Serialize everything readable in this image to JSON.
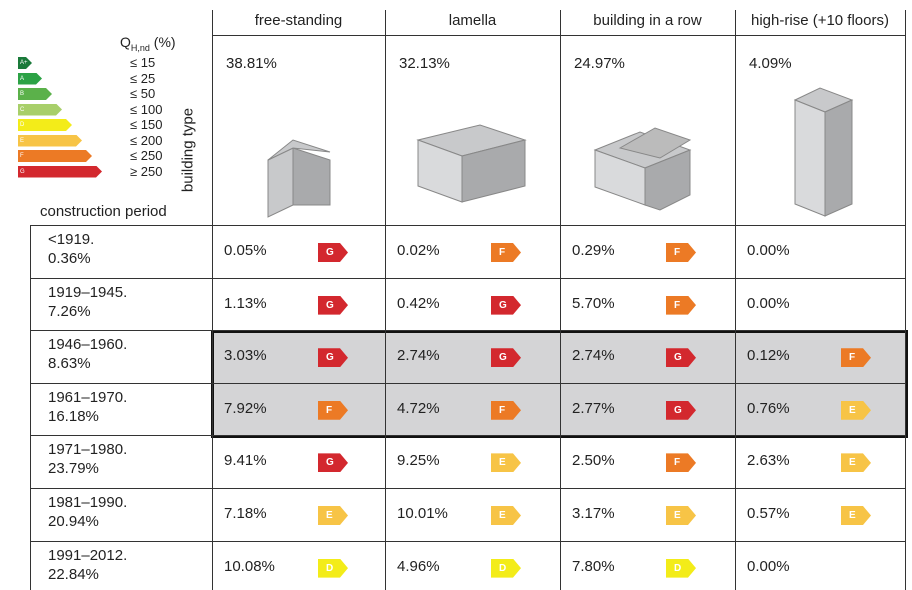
{
  "legend": {
    "quantity": "Q",
    "subscript": "H,nd",
    "unit": "(%)",
    "items": [
      {
        "letter": "A+",
        "threshold": "≤ 15",
        "color": "#1a7a3a"
      },
      {
        "letter": "A",
        "threshold": "≤ 25",
        "color": "#2ca245"
      },
      {
        "letter": "B",
        "threshold": "≤ 50",
        "color": "#5bb14a"
      },
      {
        "letter": "C",
        "threshold": "≤ 100",
        "color": "#a8cf6a"
      },
      {
        "letter": "D",
        "threshold": "≤ 150",
        "color": "#f3ec19"
      },
      {
        "letter": "E",
        "threshold": "≤ 200",
        "color": "#f7c446"
      },
      {
        "letter": "F",
        "threshold": "≤ 250",
        "color": "#ec7a25"
      },
      {
        "letter": "G",
        "threshold": "≥ 250",
        "color": "#d3282e"
      }
    ]
  },
  "axis_labels": {
    "columns": "building type",
    "rows": "construction period"
  },
  "columns": [
    {
      "name": "free-standing",
      "share": "38.81%"
    },
    {
      "name": "lamella",
      "share": "32.13%"
    },
    {
      "name": "building in a row",
      "share": "24.97%"
    },
    {
      "name": "high-rise (+10 floors)",
      "share": "4.09%"
    }
  ],
  "rows": [
    {
      "period": "<1919.",
      "share": "0.36%",
      "cells": [
        {
          "value": "0.05%",
          "class": "G"
        },
        {
          "value": "0.02%",
          "class": "F"
        },
        {
          "value": "0.29%",
          "class": "F"
        },
        {
          "value": "0.00%",
          "class": null
        }
      ]
    },
    {
      "period": "1919–1945.",
      "share": "7.26%",
      "cells": [
        {
          "value": "1.13%",
          "class": "G"
        },
        {
          "value": "0.42%",
          "class": "G"
        },
        {
          "value": "5.70%",
          "class": "F"
        },
        {
          "value": "0.00%",
          "class": null
        }
      ]
    },
    {
      "period": "1946–1960.",
      "share": "8.63%",
      "cells": [
        {
          "value": "3.03%",
          "class": "G"
        },
        {
          "value": "2.74%",
          "class": "G"
        },
        {
          "value": "2.74%",
          "class": "G"
        },
        {
          "value": "0.12%",
          "class": "F"
        }
      ]
    },
    {
      "period": "1961–1970.",
      "share": "16.18%",
      "cells": [
        {
          "value": "7.92%",
          "class": "F"
        },
        {
          "value": "4.72%",
          "class": "F"
        },
        {
          "value": "2.77%",
          "class": "G"
        },
        {
          "value": "0.76%",
          "class": "E"
        }
      ]
    },
    {
      "period": "1971–1980.",
      "share": "23.79%",
      "cells": [
        {
          "value": "9.41%",
          "class": "G"
        },
        {
          "value": "9.25%",
          "class": "E"
        },
        {
          "value": "2.50%",
          "class": "F"
        },
        {
          "value": "2.63%",
          "class": "E"
        }
      ]
    },
    {
      "period": "1981–1990.",
      "share": "20.94%",
      "cells": [
        {
          "value": "7.18%",
          "class": "E"
        },
        {
          "value": "10.01%",
          "class": "E"
        },
        {
          "value": "3.17%",
          "class": "E"
        },
        {
          "value": "0.57%",
          "class": "E"
        }
      ]
    },
    {
      "period": "1991–2012.",
      "share": "22.84%",
      "cells": [
        {
          "value": "10.08%",
          "class": "D"
        },
        {
          "value": "4.96%",
          "class": "D"
        },
        {
          "value": "7.80%",
          "class": "D"
        },
        {
          "value": "0.00%",
          "class": null
        }
      ]
    }
  ]
}
